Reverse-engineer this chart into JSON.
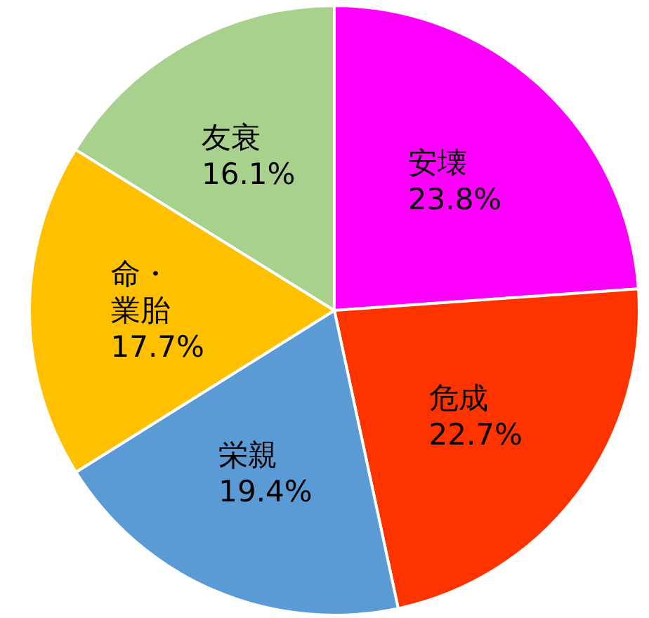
{
  "chart_data": {
    "type": "pie",
    "categories": [
      "安壊",
      "危成",
      "栄親",
      "命・業胎",
      "友衰"
    ],
    "values": [
      23.8,
      22.7,
      19.4,
      17.7,
      16.1
    ],
    "value_labels": [
      "23.8%",
      "22.7%",
      "19.4%",
      "17.7%",
      "16.1%"
    ],
    "colors": [
      "#ff00ff",
      "#ff3300",
      "#5b9bd5",
      "#ffc000",
      "#a9d18e"
    ]
  }
}
